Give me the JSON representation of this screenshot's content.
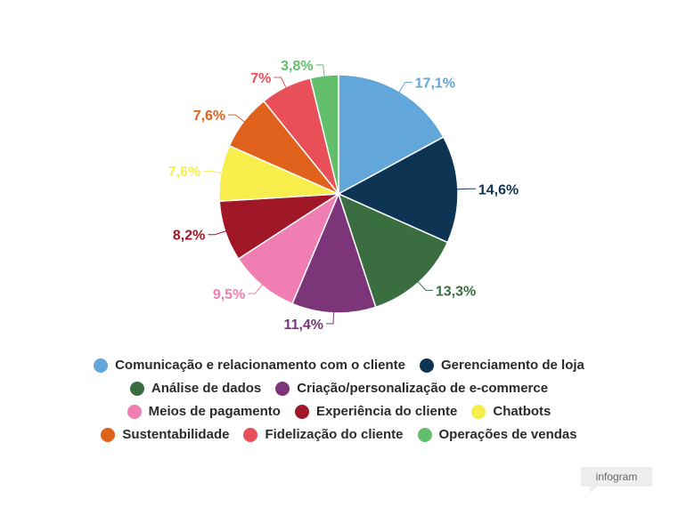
{
  "chart_data": {
    "type": "pie",
    "slices": [
      {
        "label": "Comunicação e relacionamento com o cliente",
        "value": 17.1,
        "display": "17,1%",
        "color": "#63a7da"
      },
      {
        "label": "Gerenciamento de loja",
        "value": 14.6,
        "display": "14,6%",
        "color": "#0e3453"
      },
      {
        "label": "Análise de dados",
        "value": 13.3,
        "display": "13,3%",
        "color": "#3a6e41"
      },
      {
        "label": "Criação/personalização de e-commerce",
        "value": 11.4,
        "display": "11,4%",
        "color": "#7b3578"
      },
      {
        "label": "Meios de pagamento",
        "value": 9.5,
        "display": "9,5%",
        "color": "#f07eb2"
      },
      {
        "label": "Experiência do cliente",
        "value": 8.2,
        "display": "8,2%",
        "color": "#a01727"
      },
      {
        "label": "Chatbots",
        "value": 7.6,
        "display": "7,6%",
        "color": "#f7ee4c"
      },
      {
        "label": "Sustentabilidade",
        "value": 7.6,
        "display": "7,6%",
        "color": "#e0611b"
      },
      {
        "label": "Fidelização do cliente",
        "value": 7.0,
        "display": "7%",
        "color": "#e84f58"
      },
      {
        "label": "Operações de vendas",
        "value": 3.8,
        "display": "3,8%",
        "color": "#63be6b"
      }
    ],
    "legend_position": "bottom"
  },
  "legend_rows": [
    [
      0,
      1
    ],
    [
      2,
      3
    ],
    [
      4,
      5,
      6
    ],
    [
      7,
      8,
      9
    ]
  ],
  "brand": {
    "label": "infogram"
  }
}
